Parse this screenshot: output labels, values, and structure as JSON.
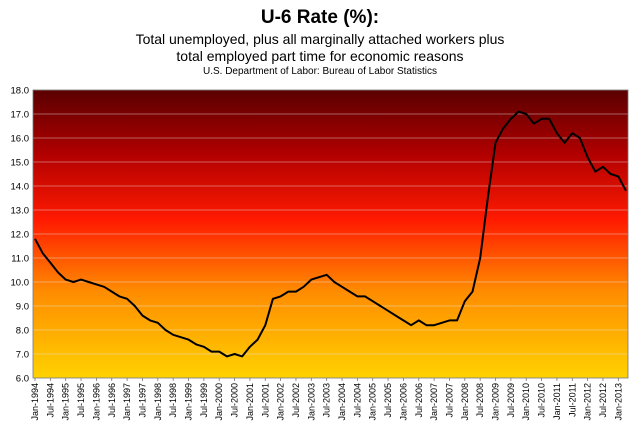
{
  "chart_data": {
    "type": "line",
    "title": "U-6 Rate (%):",
    "subtitle_lines": [
      "Total unemployed,  plus all marginally attached workers plus",
      "total employed part time for economic reasons"
    ],
    "source": "U.S. Department of Labor: Bureau of Labor Statistics",
    "xlabel": "",
    "ylabel": "",
    "ylim": [
      6.0,
      18.0
    ],
    "yticks": [
      "6.0",
      "7.0",
      "8.0",
      "9.0",
      "10.0",
      "11.0",
      "12.0",
      "13.0",
      "14.0",
      "15.0",
      "16.0",
      "17.0",
      "18.0"
    ],
    "grid": true,
    "legend": "none",
    "colors": {
      "line": "#000000",
      "gradient_top": "#5a0000",
      "gradient_upper": "#b00000",
      "gradient_mid": "#ff1a00",
      "gradient_lower": "#ff8c00",
      "gradient_bottom": "#ffd200",
      "grid": "#e8e8e8"
    },
    "xticks": [
      "Jan-1994",
      "Jul-1994",
      "Jan-1995",
      "Jul-1995",
      "Jan-1996",
      "Jul-1996",
      "Jan-1997",
      "Jul-1997",
      "Jan-1998",
      "Jul-1998",
      "Jan-1999",
      "Jul-1999",
      "Jan-2000",
      "Jul-2000",
      "Jan-2001",
      "Jul-2001",
      "Jan-2002",
      "Jul-2002",
      "Jan-2003",
      "Jul-2003",
      "Jan-2004",
      "Jul-2004",
      "Jan-2005",
      "Jul-2005",
      "Jan-2006",
      "Jul-2006",
      "Jan-2007",
      "Jul-2007",
      "Jan-2008",
      "Jul-2008",
      "Jan-2009",
      "Jul-2009",
      "Jan-2010",
      "Jul-2010",
      "Jan-2011",
      "Jul-2011",
      "Jan-2012",
      "Jul-2012",
      "Jan-2013"
    ],
    "x": [
      "Jan-1994",
      "Apr-1994",
      "Jul-1994",
      "Oct-1994",
      "Jan-1995",
      "Apr-1995",
      "Jul-1995",
      "Oct-1995",
      "Jan-1996",
      "Apr-1996",
      "Jul-1996",
      "Oct-1996",
      "Jan-1997",
      "Apr-1997",
      "Jul-1997",
      "Oct-1997",
      "Jan-1998",
      "Apr-1998",
      "Jul-1998",
      "Oct-1998",
      "Jan-1999",
      "Apr-1999",
      "Jul-1999",
      "Oct-1999",
      "Jan-2000",
      "Apr-2000",
      "Jul-2000",
      "Oct-2000",
      "Jan-2001",
      "Apr-2001",
      "Jul-2001",
      "Oct-2001",
      "Jan-2002",
      "Apr-2002",
      "Jul-2002",
      "Oct-2002",
      "Jan-2003",
      "Apr-2003",
      "Jul-2003",
      "Oct-2003",
      "Jan-2004",
      "Apr-2004",
      "Jul-2004",
      "Oct-2004",
      "Jan-2005",
      "Apr-2005",
      "Jul-2005",
      "Oct-2005",
      "Jan-2006",
      "Apr-2006",
      "Jul-2006",
      "Oct-2006",
      "Jan-2007",
      "Apr-2007",
      "Jul-2007",
      "Oct-2007",
      "Jan-2008",
      "Apr-2008",
      "Jul-2008",
      "Oct-2008",
      "Jan-2009",
      "Apr-2009",
      "Jul-2009",
      "Oct-2009",
      "Jan-2010",
      "Apr-2010",
      "Jul-2010",
      "Oct-2010",
      "Jan-2011",
      "Apr-2011",
      "Jul-2011",
      "Oct-2011",
      "Jan-2012",
      "Apr-2012",
      "Jul-2012",
      "Oct-2012",
      "Jan-2013",
      "Apr-2013"
    ],
    "series": [
      {
        "values": [
          11.8,
          11.2,
          10.8,
          10.4,
          10.1,
          10.0,
          10.1,
          10.0,
          9.9,
          9.8,
          9.6,
          9.4,
          9.3,
          9.0,
          8.6,
          8.4,
          8.3,
          8.0,
          7.8,
          7.7,
          7.6,
          7.4,
          7.3,
          7.1,
          7.1,
          6.9,
          7.0,
          6.9,
          7.3,
          7.6,
          8.2,
          9.3,
          9.4,
          9.6,
          9.6,
          9.8,
          10.1,
          10.2,
          10.3,
          10.0,
          9.8,
          9.6,
          9.4,
          9.4,
          9.2,
          9.0,
          8.8,
          8.6,
          8.4,
          8.2,
          8.4,
          8.2,
          8.2,
          8.3,
          8.4,
          8.4,
          9.2,
          9.6,
          11.0,
          13.5,
          15.8,
          16.4,
          16.8,
          17.1,
          17.0,
          16.6,
          16.8,
          16.8,
          16.2,
          15.8,
          16.2,
          16.0,
          15.2,
          14.6,
          14.8,
          14.5,
          14.4,
          13.8
        ]
      }
    ]
  }
}
